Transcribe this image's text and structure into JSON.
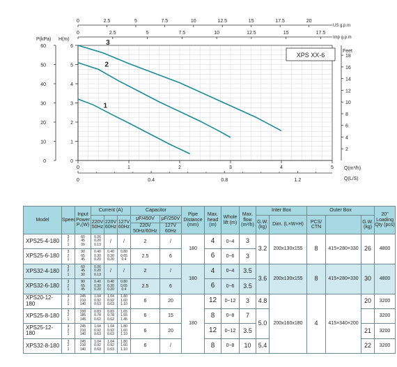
{
  "chart_data": {
    "type": "line",
    "label": "XPS  XX-6",
    "axes": {
      "q_m3h": {
        "label": "Q(m³/h)",
        "range": [
          0,
          5
        ],
        "ticks": [
          "0",
          "1",
          "2",
          "3",
          "4",
          "5"
        ]
      },
      "q_ls": {
        "label": "Q(L/S)",
        "range": [
          0,
          1.389
        ],
        "ticks": [
          "0",
          "0.4",
          "0.8",
          "1.2"
        ],
        "tick_values": [
          0,
          0.4,
          0.8,
          1.2
        ]
      },
      "us_gpm": {
        "label": "US  g.p.m",
        "range": [
          0,
          22.01
        ],
        "ticks": [
          "0",
          "2.5",
          "5",
          "7.5",
          "10",
          "12.5",
          "15",
          "17.5",
          "20"
        ],
        "tick_values": [
          0,
          2.5,
          5,
          7.5,
          10,
          12.5,
          15,
          17.5,
          20
        ]
      },
      "imp_gpm": {
        "label": "Imp  g.p.m",
        "range": [
          0,
          18.33
        ],
        "ticks": [
          "0",
          "2.5",
          "5",
          "7.5",
          "10",
          "12.5",
          "15",
          "17.5"
        ],
        "tick_values": [
          0,
          2.5,
          5,
          7.5,
          10,
          12.5,
          15,
          17.5
        ]
      },
      "head_m": {
        "label": "H(m)",
        "range": [
          0,
          6
        ],
        "ticks": [
          "0",
          "1",
          "2",
          "3",
          "4",
          "5",
          "6"
        ]
      },
      "p_kpa": {
        "label": "P(kPa)",
        "range": [
          0,
          60
        ],
        "ticks": [
          "0",
          "10",
          "20",
          "30",
          "40",
          "50",
          "60"
        ]
      },
      "feet": {
        "label": "Feet",
        "range": [
          0,
          19.7
        ],
        "ticks": [
          "2",
          "4",
          "6",
          "8",
          "10",
          "12",
          "14",
          "16",
          "18"
        ],
        "tick_values": [
          2,
          4,
          6,
          8,
          10,
          12,
          14,
          16,
          18
        ]
      }
    },
    "grid": true,
    "series": [
      {
        "name": "1",
        "x": [
          0,
          0.3,
          0.7,
          1.0,
          1.4,
          1.8,
          2.2
        ],
        "y": [
          3.2,
          2.9,
          2.35,
          1.95,
          1.4,
          0.85,
          0.35
        ]
      },
      {
        "name": "2",
        "x": [
          0,
          0.4,
          0.8,
          1.2,
          1.6,
          2.0,
          2.4,
          2.8,
          3.0
        ],
        "y": [
          5.1,
          4.75,
          4.15,
          3.6,
          3.05,
          2.55,
          2.05,
          1.5,
          1.2
        ]
      },
      {
        "name": "3",
        "x": [
          0,
          0.5,
          1.0,
          1.5,
          2.0,
          2.5,
          3.0,
          3.5,
          4.0
        ],
        "y": [
          6.0,
          5.6,
          5.05,
          4.55,
          4.05,
          3.45,
          2.85,
          2.25,
          1.55
        ]
      }
    ]
  },
  "table": {
    "headers": {
      "model": "Model",
      "speed": "Speed",
      "input_power": "Input Power P₁(W)",
      "current": "Current  (A)",
      "capacitor": "Capacitor",
      "pipe": "Pipe Distance (mm)",
      "max_head": "Max. head (m)",
      "whole_lift": "Whole lift (m)",
      "max_flow": "Max. flow (m³/h)",
      "inter_box": "Inter Box",
      "outer_box": "Outer Box",
      "loading": "20\" Loading Qty (pcs)",
      "c220_50": "220V 50Hz",
      "c220_60": "220V 60Hz",
      "c127_60": "127V 60Hz",
      "cap450": "μF/450V",
      "cap250": "μF/250V",
      "cap_sub1": "220V 50Hz/60Hz",
      "cap_sub2": "127V 60Hz",
      "gw": "G.W. (kg)",
      "dim": "Dim. (L×W×H)",
      "pcs": "PCS/ CTN",
      "gw2": "G.W. (kg)"
    },
    "rows": [
      {
        "model": "XPS25-4-180",
        "speed": [
          "3",
          "2",
          "1"
        ],
        "power": [
          "60",
          "45",
          "30"
        ],
        "c1": [
          "0.26",
          "0.20",
          "0.13"
        ],
        "c2": "/",
        "c3": "/",
        "cap1": "2",
        "cap2": "/",
        "head": "4",
        "lift": "0~4",
        "flow": "3",
        "owt": "26",
        "band": false
      },
      {
        "model": "XPS25-6-180",
        "speed": [
          "3",
          "2",
          "1"
        ],
        "power": [
          "90",
          "65",
          "45"
        ],
        "c1": [
          "0.40",
          "0.30",
          "0.20"
        ],
        "c2": [
          "0.40",
          "0.30",
          "0.20"
        ],
        "c3": [
          "0.80",
          "0.65",
          "0.4"
        ],
        "cap1": "2.5",
        "cap2": "6",
        "head": "6",
        "lift": "0~6",
        "flow": "3",
        "owt": "",
        "band": false
      },
      {
        "model": "XPS32-4-180",
        "speed": [
          "3",
          "2",
          "1"
        ],
        "power": [
          "60",
          "45",
          "30"
        ],
        "c1": [
          "0.26",
          "0.20",
          "0.13"
        ],
        "c2": "/",
        "c3": "/",
        "cap1": "2",
        "cap2": "/",
        "head": "4",
        "lift": "0~4",
        "flow": "3.5",
        "owt": "30",
        "band": true
      },
      {
        "model": "XPS32-6-180",
        "speed": [
          "3",
          "2",
          "1"
        ],
        "power": [
          "90",
          "65",
          "45"
        ],
        "c1": [
          "0.40",
          "0.30",
          "0.20"
        ],
        "c2": [
          "0.40",
          "0.30",
          "0.20"
        ],
        "c3": [
          "0.80",
          "0.65",
          "0.4"
        ],
        "cap1": "2.5",
        "cap2": "6",
        "head": "6",
        "lift": "0~6",
        "flow": "3.5",
        "owt": "",
        "band": true
      },
      {
        "model": "XPS20-12-180",
        "speed": [
          "3",
          "2",
          "1"
        ],
        "power": [
          "245",
          "210",
          "140"
        ],
        "c1": [
          "1.04",
          "0.92",
          "0.63"
        ],
        "c2": [
          "1.04",
          "0.92",
          "0.63"
        ],
        "c3": [
          "1.80",
          "1.60",
          "1.10"
        ],
        "cap1": "6",
        "cap2": "20",
        "head": "12",
        "lift": "0~12",
        "flow": "3",
        "owt": "20",
        "band": false
      },
      {
        "model": "XPS25-8-180",
        "speed": [
          "3",
          "2",
          "1"
        ],
        "power": [
          "200",
          "185",
          "145"
        ],
        "c1": [
          "0.83",
          "0.78",
          "0.62"
        ],
        "c2": [
          "0.83",
          "0.78",
          "0.62"
        ],
        "c3": [
          "1.65",
          "1.55",
          "1.45"
        ],
        "cap1": "6",
        "cap2": "15",
        "head": "8",
        "lift": "0~8",
        "flow": "7",
        "owt": "",
        "band": false
      },
      {
        "model": "XPS25-12-180",
        "speed": [
          "3",
          "2",
          "1"
        ],
        "power": [
          "245",
          "210",
          "140"
        ],
        "c1": [
          "1.04",
          "0.92",
          "0.63"
        ],
        "c2": [
          "1.04",
          "0.92",
          "0.63"
        ],
        "c3": [
          "1.80",
          "1.60",
          "1.10"
        ],
        "cap1": "6",
        "cap2": "20",
        "head": "12",
        "lift": "0~12",
        "flow": "3.5",
        "owt": "21",
        "band": false
      },
      {
        "model": "XPS32-8-180",
        "speed": [
          "3",
          "2",
          "1"
        ],
        "power": [
          "245",
          "210",
          "140"
        ],
        "c1": [
          "1.04",
          "0.92",
          "0.63"
        ],
        "c2": [
          "1.04",
          "0.92",
          "0.63"
        ],
        "c3": [
          "1.80",
          "1.60",
          "1.10"
        ],
        "cap1": "6",
        "cap2": "/",
        "head": "8",
        "lift": "0~8",
        "flow": "10",
        "owt": "22",
        "band": false
      }
    ],
    "groups": {
      "g1": {
        "pipe": "180",
        "gw": "3.2",
        "dim": "200x130x155",
        "pcs": "8",
        "odim": "415×280×330",
        "load": "4800"
      },
      "g2": {
        "pipe": "180",
        "gw": "3.6",
        "dim": "200x130x155",
        "pcs": "8",
        "odim": "415×280×330",
        "load": "4800"
      },
      "g3": {
        "pipe": "180",
        "gw_a": "4.8",
        "gw_b": "5.0",
        "gw_c": "5.4",
        "dim": "200x160x180",
        "pcs": "4",
        "odim": "415×340×200",
        "load": [
          "3200",
          "3200",
          "3200",
          "3200"
        ]
      }
    }
  }
}
